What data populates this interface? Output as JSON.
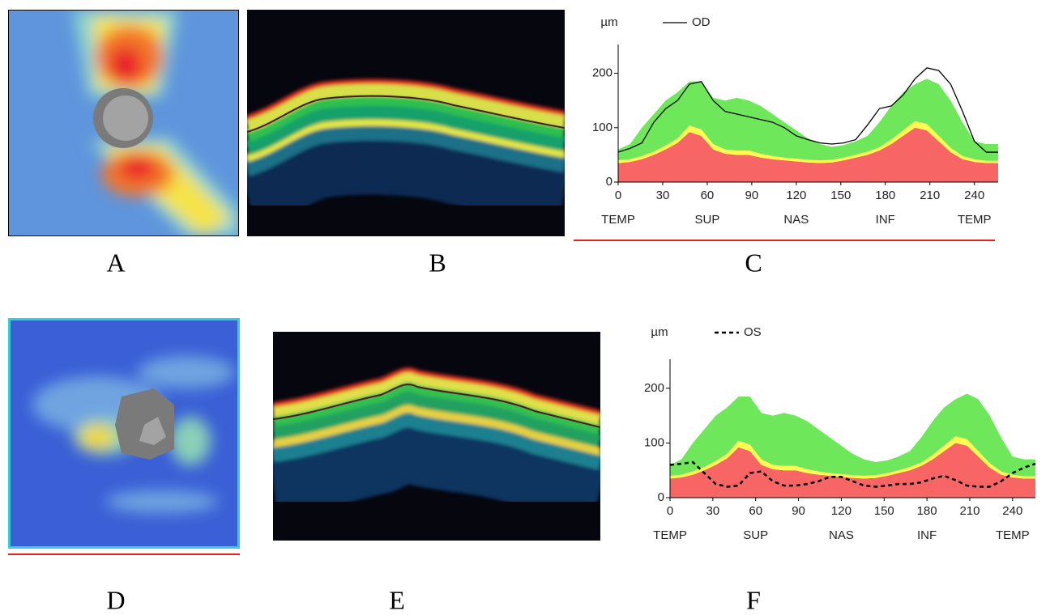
{
  "panels": {
    "labels": [
      "A",
      "B",
      "C",
      "D",
      "E",
      "F"
    ]
  },
  "chart_data": [
    {
      "type": "area",
      "ylabel": "µm",
      "x": [
        0,
        8,
        16,
        24,
        32,
        40,
        48,
        56,
        64,
        72,
        80,
        88,
        96,
        104,
        112,
        120,
        128,
        136,
        144,
        152,
        160,
        168,
        176,
        184,
        192,
        200,
        208,
        216,
        224,
        232,
        240,
        248,
        256
      ],
      "xlim": [
        0,
        256
      ],
      "xticks": [
        0,
        30,
        60,
        90,
        120,
        150,
        180,
        210,
        240
      ],
      "ylim": [
        0,
        250
      ],
      "yticks": [
        0,
        100,
        200
      ],
      "regions": [
        "TEMP",
        "SUP",
        "NAS",
        "INF",
        "TEMP"
      ],
      "bands": [
        {
          "color": "#f76565",
          "values": [
            35,
            37,
            42,
            50,
            60,
            72,
            92,
            85,
            60,
            52,
            50,
            50,
            45,
            42,
            40,
            38,
            36,
            35,
            36,
            40,
            45,
            50,
            58,
            70,
            85,
            100,
            95,
            75,
            55,
            42,
            37,
            35,
            35
          ]
        },
        {
          "color": "#ffff50",
          "values": [
            5,
            5,
            6,
            6,
            7,
            8,
            12,
            12,
            10,
            8,
            8,
            8,
            7,
            6,
            5,
            5,
            5,
            5,
            5,
            5,
            5,
            6,
            6,
            8,
            10,
            12,
            12,
            10,
            8,
            6,
            5,
            4,
            4
          ]
        },
        {
          "color": "#6ee85a",
          "values": [
            20,
            28,
            52,
            69,
            83,
            85,
            81,
            88,
            85,
            90,
            97,
            92,
            88,
            77,
            65,
            52,
            39,
            30,
            24,
            23,
            25,
            29,
            46,
            62,
            70,
            68,
            83,
            95,
            87,
            62,
            33,
            31,
            31
          ]
        }
      ],
      "series": [
        {
          "name": "OD",
          "color": "#000000",
          "line_style": "solid",
          "values": [
            55,
            62,
            72,
            110,
            135,
            150,
            180,
            185,
            150,
            130,
            125,
            120,
            115,
            110,
            100,
            85,
            78,
            72,
            70,
            72,
            78,
            105,
            135,
            140,
            160,
            190,
            210,
            205,
            180,
            130,
            75,
            55,
            55
          ]
        }
      ]
    },
    {
      "type": "area",
      "ylabel": "µm",
      "x": [
        0,
        8,
        16,
        24,
        32,
        40,
        48,
        56,
        64,
        72,
        80,
        88,
        96,
        104,
        112,
        120,
        128,
        136,
        144,
        152,
        160,
        168,
        176,
        184,
        192,
        200,
        208,
        216,
        224,
        232,
        240,
        248,
        256
      ],
      "xlim": [
        0,
        256
      ],
      "xticks": [
        0,
        30,
        60,
        90,
        120,
        150,
        180,
        210,
        240
      ],
      "ylim": [
        0,
        250
      ],
      "yticks": [
        0,
        100,
        200
      ],
      "regions": [
        "TEMP",
        "SUP",
        "NAS",
        "INF",
        "TEMP"
      ],
      "bands": [
        {
          "color": "#f76565",
          "values": [
            35,
            37,
            42,
            50,
            60,
            72,
            92,
            85,
            60,
            52,
            50,
            50,
            45,
            42,
            40,
            38,
            36,
            35,
            36,
            40,
            45,
            50,
            58,
            70,
            85,
            100,
            95,
            75,
            55,
            42,
            37,
            35,
            35
          ]
        },
        {
          "color": "#ffff50",
          "values": [
            5,
            5,
            6,
            6,
            7,
            8,
            12,
            12,
            10,
            8,
            8,
            8,
            7,
            6,
            5,
            5,
            5,
            5,
            5,
            5,
            5,
            6,
            6,
            8,
            10,
            12,
            12,
            10,
            8,
            6,
            5,
            4,
            4
          ]
        },
        {
          "color": "#6ee85a",
          "values": [
            20,
            28,
            52,
            69,
            83,
            85,
            81,
            88,
            85,
            90,
            97,
            92,
            88,
            77,
            65,
            52,
            39,
            30,
            24,
            23,
            25,
            29,
            46,
            62,
            70,
            68,
            83,
            95,
            87,
            62,
            33,
            31,
            31
          ]
        }
      ],
      "series": [
        {
          "name": "OS",
          "color": "#000000",
          "line_style": "dashed",
          "values": [
            60,
            62,
            65,
            45,
            25,
            20,
            22,
            45,
            48,
            30,
            22,
            22,
            25,
            30,
            38,
            38,
            30,
            22,
            20,
            22,
            25,
            25,
            28,
            35,
            40,
            32,
            22,
            20,
            20,
            30,
            45,
            55,
            62
          ]
        }
      ]
    }
  ]
}
